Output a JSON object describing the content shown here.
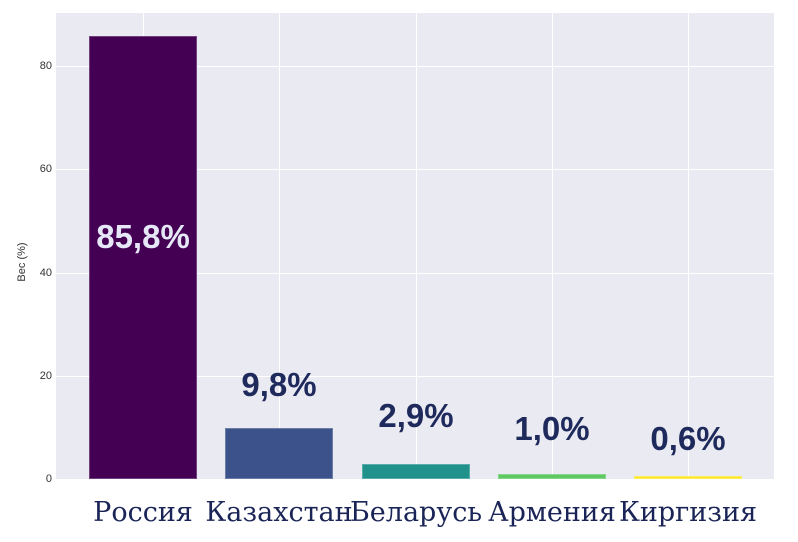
{
  "chart_data": {
    "type": "bar",
    "title": "",
    "xlabel": "",
    "ylabel": "Вес (%)",
    "ylim": [
      0,
      90
    ],
    "yticks": [
      0,
      20,
      40,
      60,
      80
    ],
    "grid": true,
    "categories": [
      "Россия",
      "Казахстан",
      "Беларусь",
      "Армения",
      "Киргизия"
    ],
    "values": [
      85.8,
      9.8,
      2.9,
      1.0,
      0.6
    ],
    "value_labels": [
      "85,8%",
      "9,8%",
      "2,9%",
      "1,0%",
      "0,6%"
    ],
    "colors": [
      "#440154",
      "#3b528b",
      "#21918c",
      "#5ec962",
      "#fde725"
    ],
    "label_color_inside": "#e6e8f8",
    "label_color_outside": "#1f2a5c",
    "background": "#eaeaf2"
  }
}
